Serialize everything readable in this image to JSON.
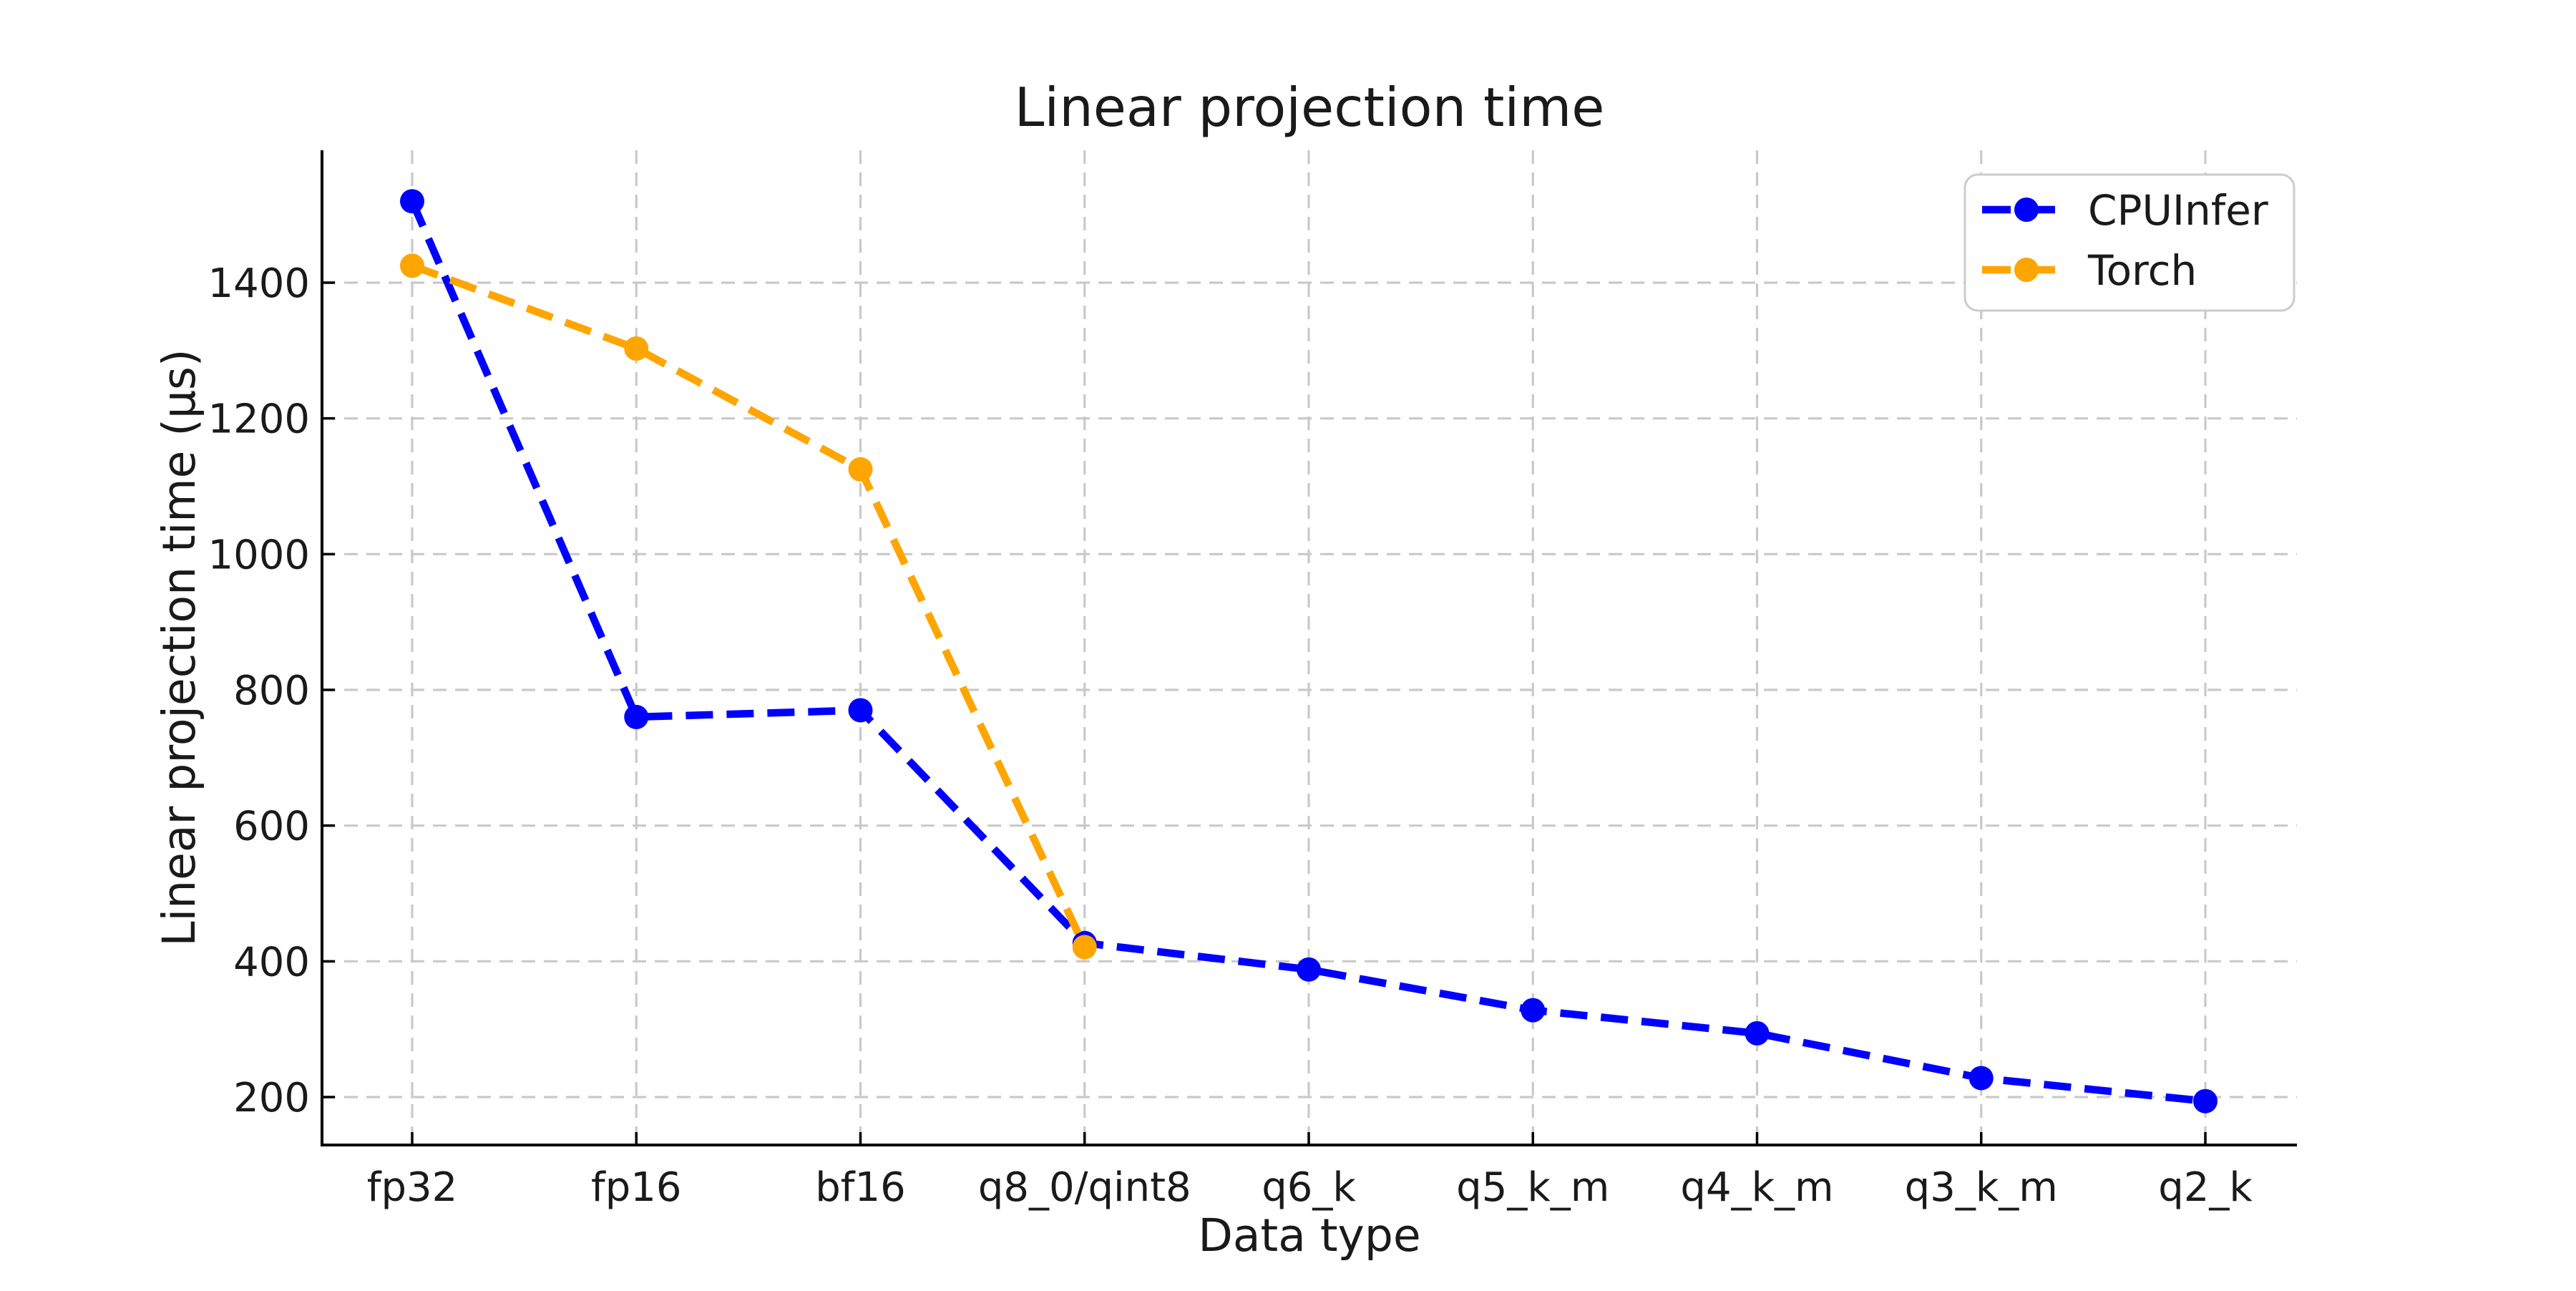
{
  "chart_data": {
    "type": "line",
    "title": "Linear projection time",
    "xlabel": "Data type",
    "ylabel": "Linear projection time (μs)",
    "categories": [
      "fp32",
      "fp16",
      "bf16",
      "q8_0/qint8",
      "q6_k",
      "q5_k_m",
      "q4_k_m",
      "q3_k_m",
      "q2_k"
    ],
    "series": [
      {
        "name": "CPUInfer",
        "color": "#0000ff",
        "values": [
          1520,
          760,
          770,
          427,
          388,
          328,
          294,
          228,
          194
        ]
      },
      {
        "name": "Torch",
        "color": "#ffa500",
        "values": [
          1425,
          1303,
          1125,
          421,
          null,
          null,
          null,
          null,
          null
        ]
      }
    ],
    "y_ticks": [
      200,
      400,
      600,
      800,
      1000,
      1200,
      1400
    ],
    "y_range": [
      128,
      1593
    ],
    "x_tick_count": 9,
    "grid": true,
    "line_style": "dashed",
    "marker": "circle",
    "legend_position": "upper right",
    "legend_entries": [
      "CPUInfer",
      "Torch"
    ]
  },
  "style_colors": {
    "background": "#ffffff",
    "grid": "#c9c9c9",
    "spine": "#000000",
    "text": "#1a1a1a",
    "legend_border": "#cccccc",
    "series_blue": "#0000ff",
    "series_orange": "#ffa500"
  }
}
